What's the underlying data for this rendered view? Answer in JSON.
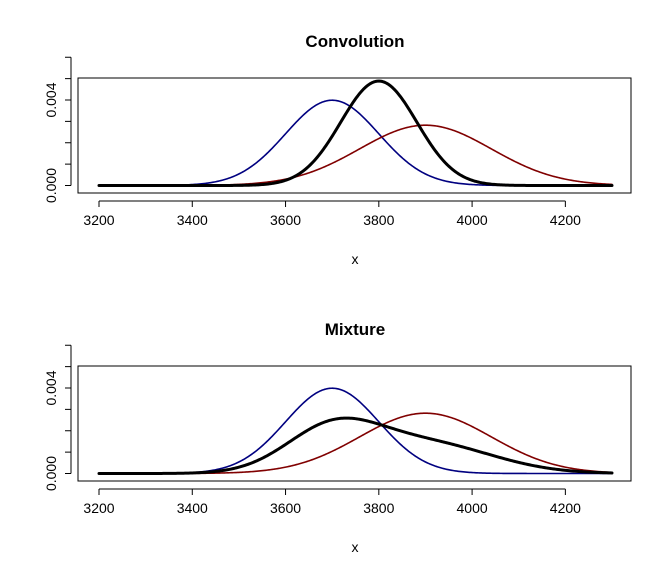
{
  "chart_data": [
    {
      "type": "line",
      "title": "Convolution",
      "xlabel": "x",
      "ylabel": "",
      "xlim": [
        3200,
        4300
      ],
      "ylim": [
        0,
        0.005
      ],
      "x_ticks": [
        3200,
        3400,
        3600,
        3800,
        4000,
        4200
      ],
      "x_tick_labels": [
        "3200",
        "3400",
        "3600",
        "3800",
        "4000",
        "4200"
      ],
      "y_ticks_major": [
        0,
        0.004
      ],
      "y_tick_labels": [
        "0.000",
        "0.004"
      ],
      "y_ticks_minor": [
        0.001,
        0.002,
        0.003,
        0.005,
        0.006
      ],
      "grid": false,
      "series": [
        {
          "color": "#000080",
          "stroke_weight": "normal",
          "mean": 3700,
          "sd": 100,
          "weight": 1
        },
        {
          "color": "#800000",
          "stroke_weight": "normal",
          "mean": 3900,
          "sd": 141.42,
          "weight": 1
        },
        {
          "color": "#000000",
          "stroke_weight": "bold",
          "mean": 3800,
          "sd": 81.65,
          "weight": 1
        }
      ]
    },
    {
      "type": "line",
      "title": "Mixture",
      "xlabel": "x",
      "ylabel": "",
      "xlim": [
        3200,
        4300
      ],
      "ylim": [
        0,
        0.005
      ],
      "x_ticks": [
        3200,
        3400,
        3600,
        3800,
        4000,
        4200
      ],
      "x_tick_labels": [
        "3200",
        "3400",
        "3600",
        "3800",
        "4000",
        "4200"
      ],
      "y_ticks_major": [
        0,
        0.004
      ],
      "y_tick_labels": [
        "0.000",
        "0.004"
      ],
      "y_ticks_minor": [
        0.001,
        0.002,
        0.003,
        0.005,
        0.006
      ],
      "grid": false,
      "series": [
        {
          "color": "#000080",
          "stroke_weight": "normal",
          "components": [
            {
              "mean": 3700,
              "sd": 100,
              "weight": 1
            }
          ]
        },
        {
          "color": "#800000",
          "stroke_weight": "normal",
          "components": [
            {
              "mean": 3900,
              "sd": 141.42,
              "weight": 1
            }
          ]
        },
        {
          "color": "#000000",
          "stroke_weight": "bold",
          "components": [
            {
              "mean": 3700,
              "sd": 100,
              "weight": 0.5
            },
            {
              "mean": 3900,
              "sd": 141.42,
              "weight": 0.5
            }
          ]
        }
      ]
    }
  ]
}
